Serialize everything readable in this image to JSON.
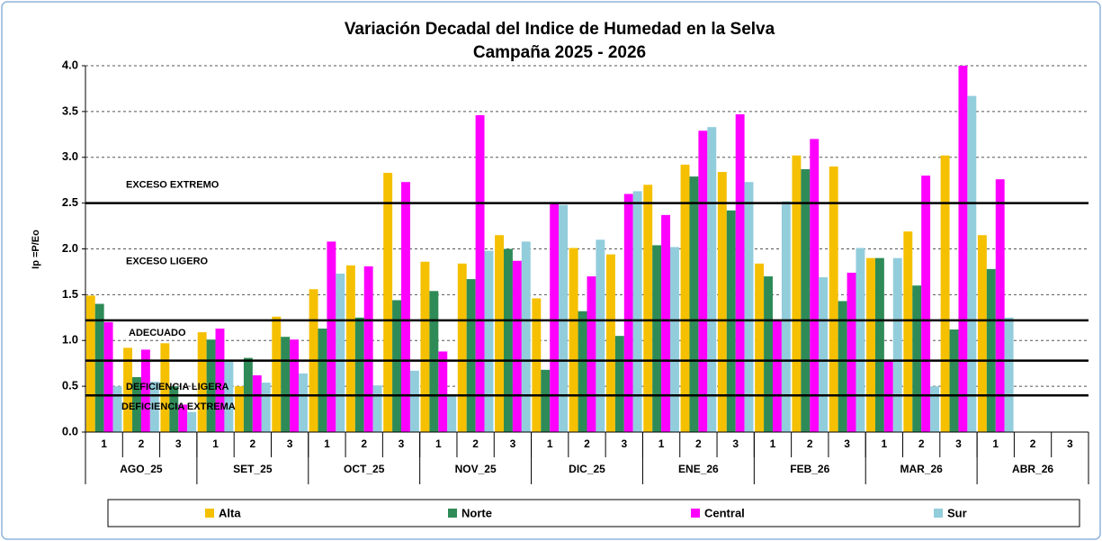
{
  "chart_data": {
    "type": "bar",
    "title": "Variación Decadal del Indice de Humedad en la Selva",
    "subtitle": "Campaña 2025 - 2026",
    "y_label": "Ip =P/Eo",
    "categories": [
      "1",
      "2",
      "3",
      "1",
      "2",
      "3",
      "1",
      "2",
      "3",
      "1",
      "2",
      "3",
      "1",
      "2",
      "3",
      "1",
      "2",
      "3",
      "1",
      "2",
      "3",
      "1",
      "2",
      "3",
      "1",
      "2",
      "3"
    ],
    "groups": [
      "AGO_25",
      "SET_25",
      "OCT_25",
      "NOV_25",
      "DIC_25",
      "ENE_26",
      "FEB_26",
      "MAR_26",
      "ABR_26"
    ],
    "series": [
      {
        "name": "Alta",
        "color": "#f5c000",
        "values": [
          1.49,
          0.92,
          0.97,
          1.09,
          0.5,
          1.26,
          1.56,
          1.82,
          2.83,
          1.86,
          1.84,
          2.15,
          1.46,
          2.01,
          1.94,
          2.7,
          2.92,
          2.84,
          1.84,
          3.02,
          2.9,
          1.9,
          2.19,
          3.02,
          2.15,
          null,
          null
        ]
      },
      {
        "name": "Norte",
        "color": "#2e8b57",
        "values": [
          1.4,
          0.6,
          0.5,
          1.01,
          0.81,
          1.04,
          1.13,
          1.25,
          1.44,
          1.54,
          1.67,
          2.0,
          0.68,
          1.32,
          1.05,
          2.04,
          2.79,
          2.42,
          1.7,
          2.87,
          1.43,
          1.9,
          1.6,
          1.12,
          1.78,
          null,
          null
        ]
      },
      {
        "name": "Central",
        "color": "#ff00ff",
        "values": [
          1.2,
          0.9,
          0.3,
          1.13,
          0.62,
          1.01,
          2.08,
          1.81,
          2.73,
          0.88,
          3.46,
          1.87,
          2.5,
          1.7,
          2.6,
          2.37,
          3.29,
          3.47,
          1.22,
          3.2,
          1.74,
          0.78,
          2.8,
          4.0,
          2.76,
          null,
          null
        ]
      },
      {
        "name": "Sur",
        "color": "#92cddc",
        "values": [
          0.5,
          0.55,
          0.22,
          0.77,
          0.54,
          0.64,
          1.73,
          0.51,
          0.67,
          0.4,
          1.98,
          2.08,
          2.48,
          2.1,
          2.63,
          2.02,
          3.33,
          2.73,
          2.52,
          1.69,
          2.01,
          1.9,
          0.5,
          3.67,
          1.25,
          null,
          null
        ]
      }
    ],
    "ylim": [
      0,
      4
    ],
    "yticks": [
      {
        "value": 0,
        "label": "0.0"
      },
      {
        "value": 0.5,
        "label": "0.5"
      },
      {
        "value": 1,
        "label": "1.0"
      },
      {
        "value": 1.5,
        "label": "1.5"
      },
      {
        "value": 2,
        "label": "2.0"
      },
      {
        "value": 2.5,
        "label": "2.5"
      },
      {
        "value": 3,
        "label": "3.0"
      },
      {
        "value": 3.5,
        "label": "3.5"
      },
      {
        "value": 4,
        "label": "4.0"
      }
    ],
    "grid": true,
    "thresholds": [
      2.5,
      1.22,
      0.78,
      0.4
    ],
    "zones": [
      "EXCESO EXTREMO",
      "EXCESO LIGERO",
      "ADECUADO",
      "DEFICIENCIA LIGERA",
      "DEFICIENCIA EXTREMA"
    ],
    "legend": "bottom"
  }
}
